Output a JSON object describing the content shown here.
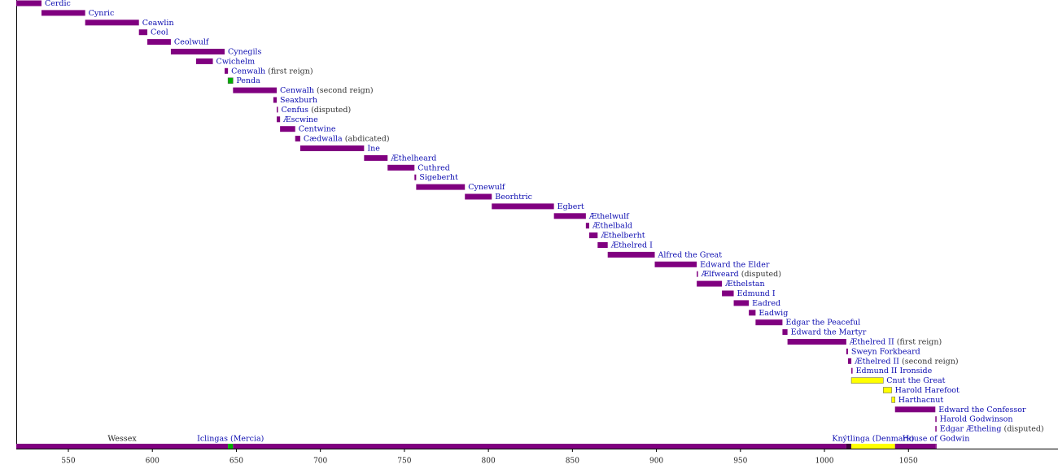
{
  "chart_data": {
    "type": "timeline",
    "xlim": [
      519,
      1139
    ],
    "xticks": [
      550,
      600,
      650,
      700,
      750,
      800,
      850,
      900,
      950,
      1000,
      1050
    ],
    "color": "#800080",
    "rows": [
      {
        "name": "Cerdic",
        "start": 519,
        "end": 534
      },
      {
        "name": "Cynric",
        "start": 534,
        "end": 560
      },
      {
        "name": "Ceawlin",
        "start": 560,
        "end": 592
      },
      {
        "name": "Ceol",
        "start": 592,
        "end": 597
      },
      {
        "name": "Ceolwulf",
        "start": 597,
        "end": 611
      },
      {
        "name": "Cynegils",
        "start": 611,
        "end": 643
      },
      {
        "name": "Cwichelm",
        "start": 626,
        "end": 636
      },
      {
        "name": "Cenwalh",
        "note": "(first reign)",
        "start": 643,
        "end": 645
      },
      {
        "name": "Penda",
        "start": 645,
        "end": 648,
        "color": "#00b000"
      },
      {
        "name": "Cenwalh",
        "note": "(second reign)",
        "start": 648,
        "end": 674
      },
      {
        "name": "Seaxburh",
        "start": 672,
        "end": 674
      },
      {
        "name": "Cenfus",
        "note": "(disputed)",
        "start": 674,
        "end": 674
      },
      {
        "name": "Æscwine",
        "start": 674,
        "end": 676
      },
      {
        "name": "Centwine",
        "start": 676,
        "end": 685
      },
      {
        "name": "Cædwalla",
        "note": "(abdicated)",
        "start": 685,
        "end": 688
      },
      {
        "name": "Ine",
        "start": 688,
        "end": 726
      },
      {
        "name": "Æthelheard",
        "start": 726,
        "end": 740
      },
      {
        "name": "Cuthred",
        "start": 740,
        "end": 756
      },
      {
        "name": "Sigeberht",
        "start": 756,
        "end": 757
      },
      {
        "name": "Cynewulf",
        "start": 757,
        "end": 786
      },
      {
        "name": "Beorhtric",
        "start": 786,
        "end": 802
      },
      {
        "name": "Egbert",
        "start": 802,
        "end": 839
      },
      {
        "name": "Æthelwulf",
        "start": 839,
        "end": 858
      },
      {
        "name": "Æthelbald",
        "start": 858,
        "end": 860
      },
      {
        "name": "Æthelberht",
        "start": 860,
        "end": 865
      },
      {
        "name": "Æthelred I",
        "start": 865,
        "end": 871
      },
      {
        "name": "Alfred the Great",
        "start": 871,
        "end": 899
      },
      {
        "name": "Edward the Elder",
        "start": 899,
        "end": 924
      },
      {
        "name": "Ælfweard",
        "note": "(disputed)",
        "start": 924,
        "end": 924
      },
      {
        "name": "Æthelstan",
        "start": 924,
        "end": 939
      },
      {
        "name": "Edmund I",
        "start": 939,
        "end": 946
      },
      {
        "name": "Eadred",
        "start": 946,
        "end": 955
      },
      {
        "name": "Eadwig",
        "start": 955,
        "end": 959
      },
      {
        "name": "Edgar the Peaceful",
        "start": 959,
        "end": 975
      },
      {
        "name": "Edward the Martyr",
        "start": 975,
        "end": 978
      },
      {
        "name": "Æthelred II",
        "note": "(first reign)",
        "start": 978,
        "end": 1013
      },
      {
        "name": "Sweyn Forkbeard",
        "start": 1013,
        "end": 1014
      },
      {
        "name": "Æthelred II",
        "note": "(second reign)",
        "start": 1014,
        "end": 1016
      },
      {
        "name": "Edmund II Ironside",
        "start": 1016,
        "end": 1016
      },
      {
        "name": "Cnut the Great",
        "start": 1016,
        "end": 1035,
        "color": "#ffff00"
      },
      {
        "name": "Harold Harefoot",
        "start": 1035,
        "end": 1040,
        "color": "#ffff00"
      },
      {
        "name": "Harthacnut",
        "start": 1040,
        "end": 1042,
        "color": "#ffff00"
      },
      {
        "name": "Edward the Confessor",
        "start": 1042,
        "end": 1066
      },
      {
        "name": "Harold Godwinson",
        "start": 1066,
        "end": 1066
      },
      {
        "name": "Edgar Ætheling",
        "note": "(disputed)",
        "start": 1066,
        "end": 1066
      }
    ],
    "dynasties": [
      {
        "label": "Wessex",
        "start": 519,
        "end": 645
      },
      {
        "label": "Iclingas (Mercia)",
        "start": 645,
        "end": 648,
        "color": "#00b000"
      },
      {
        "label": null,
        "start": 648,
        "end": 1013
      },
      {
        "label": null,
        "start": 1013,
        "end": 1016,
        "color": "#400040"
      },
      {
        "label": "Knýtlinga (Denmark)",
        "start": 1016,
        "end": 1042,
        "color": "#ffff00"
      },
      {
        "label": null,
        "start": 1042,
        "end": 1066
      },
      {
        "label": "House of Godwin",
        "start": 1066,
        "end": 1066
      }
    ]
  }
}
